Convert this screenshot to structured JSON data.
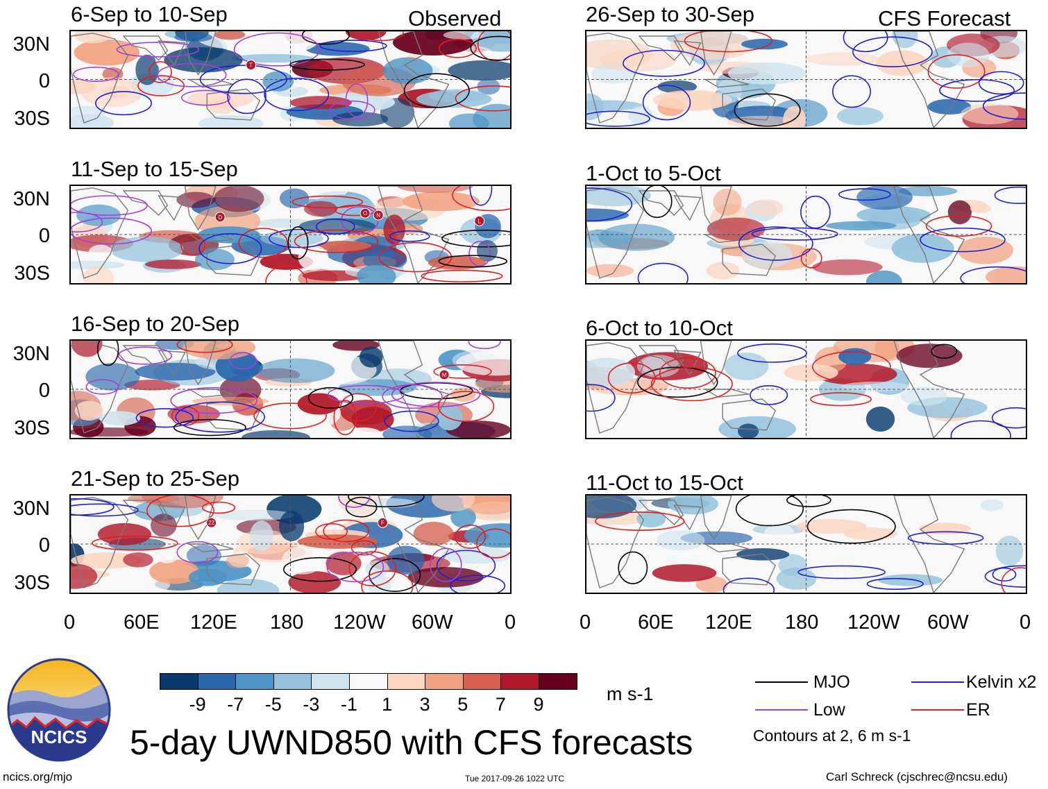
{
  "panels": {
    "left": [
      {
        "title": "6-Sep to 10-Sep",
        "corner": "Observed"
      },
      {
        "title": "11-Sep to 15-Sep",
        "corner": ""
      },
      {
        "title": "16-Sep to 20-Sep",
        "corner": ""
      },
      {
        "title": "21-Sep to 25-Sep",
        "corner": ""
      }
    ],
    "right": [
      {
        "title": "26-Sep to 30-Sep",
        "corner": "CFS Forecast"
      },
      {
        "title": "1-Oct to 5-Oct",
        "corner": ""
      },
      {
        "title": "6-Oct to 10-Oct",
        "corner": ""
      },
      {
        "title": "11-Oct to 15-Oct",
        "corner": ""
      }
    ]
  },
  "axes": {
    "lat_labels": [
      "30N",
      "0",
      "30S"
    ],
    "lon_labels": [
      "0",
      "60E",
      "120E",
      "180",
      "120W",
      "60W",
      "0"
    ]
  },
  "colorbar": {
    "colors": [
      "#083a6e",
      "#2a68ae",
      "#4d95c5",
      "#95c3dd",
      "#d0e4ef",
      "#f8f8f8",
      "#fbd6c2",
      "#f2a280",
      "#d6604d",
      "#b2182b",
      "#67001f"
    ],
    "labels": [
      "-9",
      "-7",
      "-5",
      "-3",
      "-1",
      "1",
      "3",
      "5",
      "7",
      "9"
    ],
    "units": "m s-1"
  },
  "legend": {
    "items": [
      {
        "label": "MJO",
        "color": "#000000"
      },
      {
        "label": "Kelvin x2",
        "color": "#1f1fd6"
      },
      {
        "label": "Low",
        "color": "#a340d8"
      },
      {
        "label": "ER",
        "color": "#e01f1f"
      }
    ],
    "note": "Contours at 2, 6 m s-1"
  },
  "logo": {
    "text": "NCICS"
  },
  "title": "5-day UWND850 with CFS forecasts",
  "footer": {
    "url": "ncics.org/mjo",
    "timestamp": "Tue 2017-09-26 1022 UTC",
    "credit": "Carl Schreck (cjschrec@ncsu.edu)"
  },
  "storms": {
    "p0": [
      "T"
    ],
    "p1": [
      "D",
      "O",
      "N",
      "L"
    ],
    "p2": [
      "M"
    ],
    "p3": [
      "22",
      "F"
    ]
  }
}
